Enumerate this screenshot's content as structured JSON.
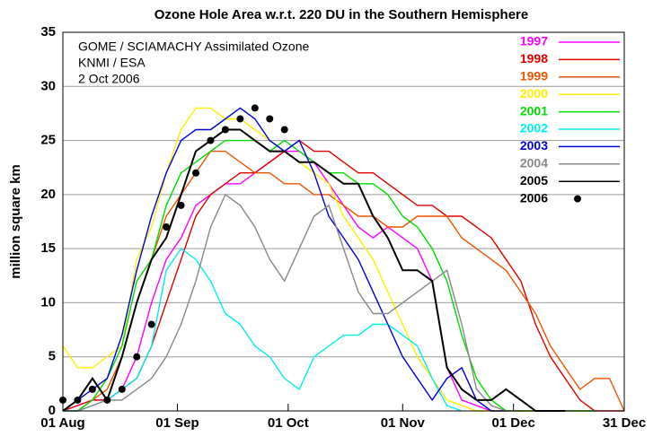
{
  "chart_data": {
    "type": "line",
    "title": "Ozone Hole Area w.r.t. 220 DU in the Southern Hemisphere",
    "y_label": "million square km",
    "annotations": [
      "GOME / SCIAMACHY Assimilated Ozone",
      "KNMI / ESA",
      "2 Oct 2006"
    ],
    "x": [
      0,
      4,
      8,
      12,
      16,
      20,
      24,
      28,
      32,
      36,
      40,
      44,
      48,
      52,
      56,
      60,
      64,
      68,
      72,
      76,
      80,
      84,
      88,
      92,
      96,
      100,
      104,
      108,
      112,
      116,
      120,
      124,
      128,
      132,
      136,
      140,
      144,
      148,
      152
    ],
    "xlim": [
      0,
      152
    ],
    "xticks": [
      {
        "value": 0,
        "label": "01 Aug"
      },
      {
        "value": 31,
        "label": "01 Sep"
      },
      {
        "value": 61,
        "label": "01 Oct"
      },
      {
        "value": 92,
        "label": "01 Nov"
      },
      {
        "value": 122,
        "label": "01 Dec"
      },
      {
        "value": 152,
        "label": "31 Dec"
      }
    ],
    "ylim": [
      0,
      35
    ],
    "yticks": [
      0,
      5,
      10,
      15,
      20,
      25,
      30,
      35
    ],
    "grid": true,
    "series": [
      {
        "name": "1997",
        "color": "#ff00ff",
        "style": "line",
        "values": [
          0,
          0.5,
          1,
          1,
          2,
          5,
          10,
          14,
          16,
          19,
          20,
          21,
          21,
          22,
          23,
          24,
          24,
          23,
          21,
          19,
          17,
          16,
          17,
          16,
          15,
          12,
          4,
          1,
          0.5,
          0,
          0,
          0,
          0,
          0,
          0,
          0,
          0,
          null,
          null
        ]
      },
      {
        "name": "1998",
        "color": "#e00000",
        "style": "line",
        "values": [
          0,
          0.5,
          1,
          1,
          2,
          3,
          6,
          10,
          14,
          18,
          20,
          21,
          22,
          22,
          23,
          24,
          25,
          24,
          24,
          23,
          22,
          22,
          21,
          20,
          19,
          19,
          18,
          18,
          17,
          16,
          14,
          12,
          8,
          5,
          3,
          1,
          0,
          0,
          0
        ]
      },
      {
        "name": "1999",
        "color": "#ee5500",
        "style": "line",
        "values": [
          0,
          0,
          1,
          2,
          5,
          10,
          14,
          18,
          20,
          22,
          24,
          24,
          23,
          22,
          22,
          21,
          21,
          20,
          20,
          19,
          18,
          18,
          17,
          17,
          18,
          18,
          18,
          16,
          15,
          14,
          13,
          11,
          9,
          6,
          4,
          2,
          3,
          3,
          0
        ]
      },
      {
        "name": "2000",
        "color": "#ffee00",
        "style": "line",
        "values": [
          6,
          4,
          4,
          5,
          6,
          14,
          17,
          22,
          26,
          28,
          28,
          27,
          27,
          26,
          25,
          24,
          23,
          22,
          21,
          18,
          16,
          14,
          11,
          8,
          5,
          3,
          1,
          0.5,
          0,
          0,
          0,
          0,
          0,
          0,
          0,
          0,
          0,
          null,
          null
        ]
      },
      {
        "name": "2001",
        "color": "#00dd00",
        "style": "line",
        "values": [
          0,
          0,
          1,
          3,
          6,
          12,
          14,
          19,
          22,
          23,
          24,
          25,
          25,
          25,
          24,
          25,
          24,
          23,
          22,
          22,
          21,
          21,
          20,
          18,
          17,
          15,
          12,
          7,
          3,
          1,
          0,
          0,
          0,
          0,
          0,
          0,
          0,
          null,
          null
        ]
      },
      {
        "name": "2002",
        "color": "#00eeee",
        "style": "line",
        "values": [
          0,
          0,
          0.5,
          1,
          2,
          3,
          6,
          13,
          15,
          14,
          12,
          9,
          8,
          6,
          5,
          3,
          2,
          5,
          6,
          7,
          7,
          8,
          8,
          7,
          6,
          3,
          0.5,
          0,
          null,
          null,
          null,
          null,
          null,
          null,
          null,
          null,
          null,
          null,
          null
        ]
      },
      {
        "name": "2003",
        "color": "#0000dd",
        "style": "line",
        "values": [
          0,
          1,
          2,
          3,
          7,
          13,
          18,
          22,
          25,
          26,
          26,
          27,
          28,
          27,
          25,
          24,
          25,
          22,
          18,
          16,
          14,
          11,
          8,
          5,
          3,
          1,
          3,
          4,
          1,
          0,
          0,
          null,
          null,
          null,
          null,
          null,
          null,
          null,
          null
        ]
      },
      {
        "name": "2004",
        "color": "#888888",
        "style": "line",
        "values": [
          0,
          0,
          0.5,
          1,
          1,
          2,
          3,
          5,
          8,
          12,
          17,
          20,
          19,
          17,
          14,
          12,
          15,
          18,
          19,
          15,
          11,
          9,
          9,
          10,
          11,
          12,
          13,
          8,
          2,
          0.5,
          0,
          0,
          null,
          null,
          null,
          null,
          null,
          null,
          null
        ]
      },
      {
        "name": "2005",
        "color": "#000000",
        "style": "line",
        "values": [
          0,
          1,
          3,
          1,
          5,
          10,
          14,
          16,
          20,
          24,
          25,
          26,
          26,
          25,
          24,
          24,
          23,
          23,
          22,
          21,
          21,
          18,
          16,
          13,
          13,
          12,
          4,
          2,
          1,
          1,
          2,
          1,
          0,
          0,
          0,
          null,
          null,
          null,
          null
        ]
      },
      {
        "name": "2006",
        "color": "#000000",
        "style": "dots",
        "values": [
          1,
          1,
          2,
          1,
          2,
          5,
          8,
          17,
          19,
          22,
          25,
          26,
          27,
          28,
          27,
          26,
          null,
          null,
          null,
          null,
          null,
          null,
          null,
          null,
          null,
          null,
          null,
          null,
          null,
          null,
          null,
          null,
          null,
          null,
          null,
          null,
          null,
          null,
          null
        ]
      }
    ]
  }
}
